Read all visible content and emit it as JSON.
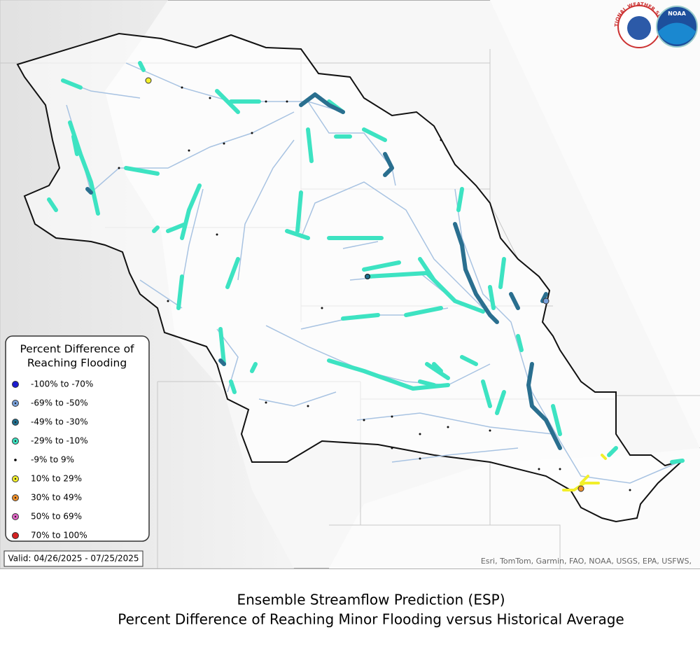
{
  "header": {
    "logos": [
      "NATIONAL WEATHER SERVICE",
      "NOAA"
    ]
  },
  "legend": {
    "title": [
      "Percent Difference of",
      "Reaching Flooding"
    ],
    "entries": [
      {
        "label": "-100% to -70%",
        "color": "#1c1ccf"
      },
      {
        "label": "-69% to -50%",
        "color": "#7aa2dc"
      },
      {
        "label": "-49% to -30%",
        "color": "#1f6f8f"
      },
      {
        "label": "-29% to -10%",
        "color": "#3de3c2"
      },
      {
        "label": "-9% to 9%",
        "color": "#000000"
      },
      {
        "label": "10% to 29%",
        "color": "#f2ef2a"
      },
      {
        "label": "30% to 49%",
        "color": "#f0902a"
      },
      {
        "label": "50% to 69%",
        "color": "#e066c6"
      },
      {
        "label": "70% to 100%",
        "color": "#d42020"
      }
    ]
  },
  "valid": "Valid: 04/26/2025 - 07/25/2025",
  "attribution": "Esri, TomTom, Garmin, FAO, NOAA, USGS, EPA, USFWS,",
  "caption": [
    "Ensemble Streamflow Prediction (ESP)",
    "Percent Difference of Reaching Minor Flooding versus Historical Average"
  ]
}
